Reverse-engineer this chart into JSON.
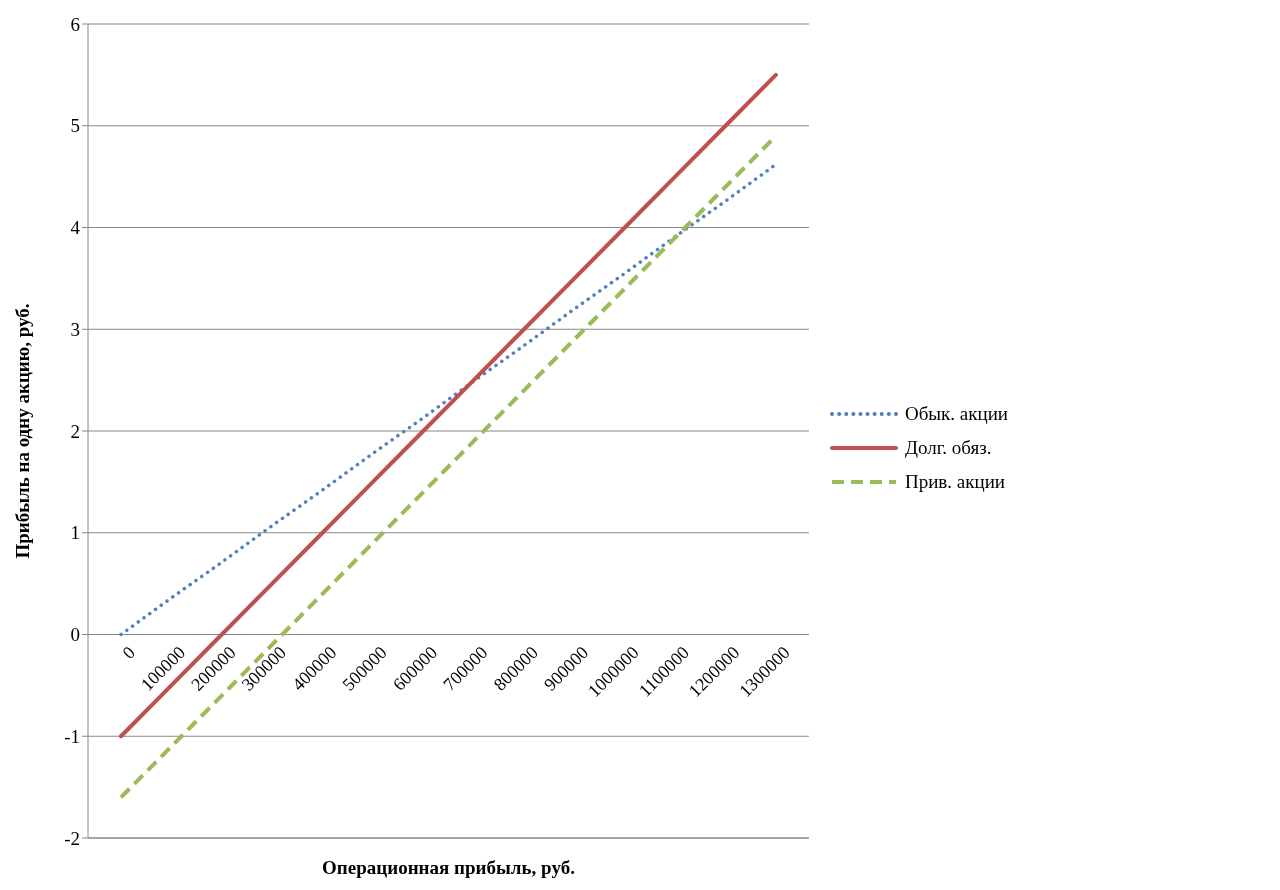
{
  "chart_data": {
    "type": "line",
    "xlabel": "Операционная прибыль, руб.",
    "ylabel": "Прибыль на одну акцию, руб.",
    "categories": [
      "0",
      "100000",
      "200000",
      "300000",
      "400000",
      "500000",
      "600000",
      "700000",
      "800000",
      "900000",
      "1000000",
      "1100000",
      "1200000",
      "1300000"
    ],
    "series": [
      {
        "name": "Обык. акции",
        "color": "#4f81bd",
        "line_style": "dotted",
        "values": [
          0,
          0.36,
          0.71,
          1.07,
          1.42,
          1.78,
          2.13,
          2.49,
          2.84,
          3.2,
          3.55,
          3.91,
          4.26,
          4.62
        ]
      },
      {
        "name": "Долг. обяз.",
        "color": "#c0504d",
        "line_style": "solid",
        "values": [
          -1,
          -0.5,
          0,
          0.5,
          1,
          1.5,
          2,
          2.5,
          3,
          3.5,
          4,
          4.5,
          5,
          5.5
        ]
      },
      {
        "name": "Прив. акции",
        "color": "#9bbb59",
        "line_style": "dashed",
        "values": [
          -1.6,
          -1.1,
          -0.6,
          -0.1,
          0.4,
          0.9,
          1.4,
          1.9,
          2.4,
          2.9,
          3.4,
          3.9,
          4.4,
          4.9
        ]
      }
    ],
    "ylim": [
      -2,
      6
    ],
    "yticks": [
      -2,
      -1,
      0,
      1,
      2,
      3,
      4,
      5,
      6
    ],
    "grid": "y",
    "legend": "right",
    "marker": "none"
  }
}
